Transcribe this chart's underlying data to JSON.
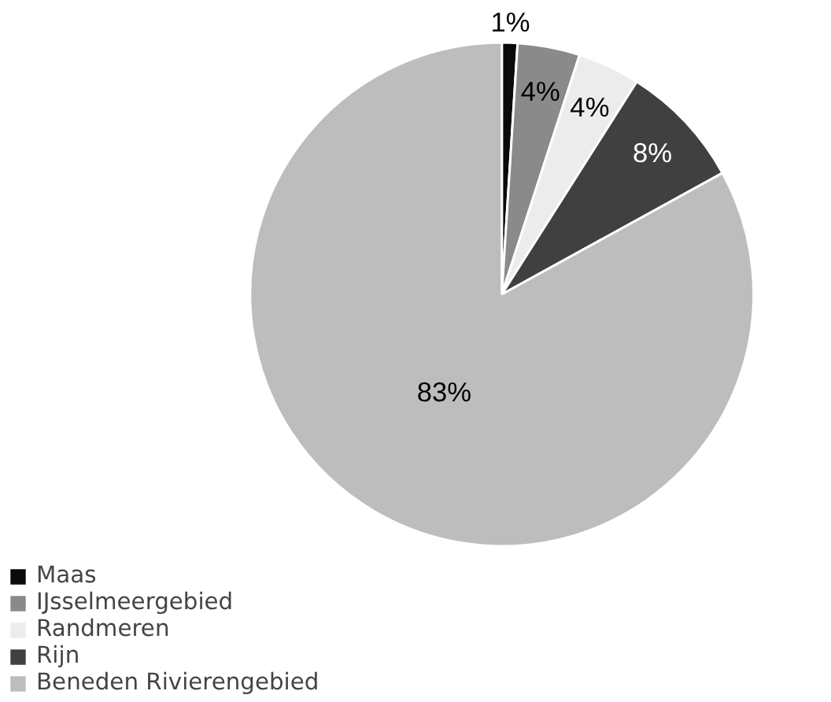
{
  "chart_data": {
    "type": "pie",
    "categories": [
      "Maas",
      "IJsselmeergebied",
      "Randmeren",
      "Rijn",
      "Beneden Rivierengebied"
    ],
    "values": [
      1,
      4,
      4,
      8,
      83
    ],
    "colors": [
      "#0a0a0a",
      "#8a8a8a",
      "#ececec",
      "#404040",
      "#bdbdbd"
    ],
    "value_labels": [
      "1%",
      "4%",
      "4%",
      "8%",
      "83%"
    ],
    "legend": "bottom left"
  }
}
